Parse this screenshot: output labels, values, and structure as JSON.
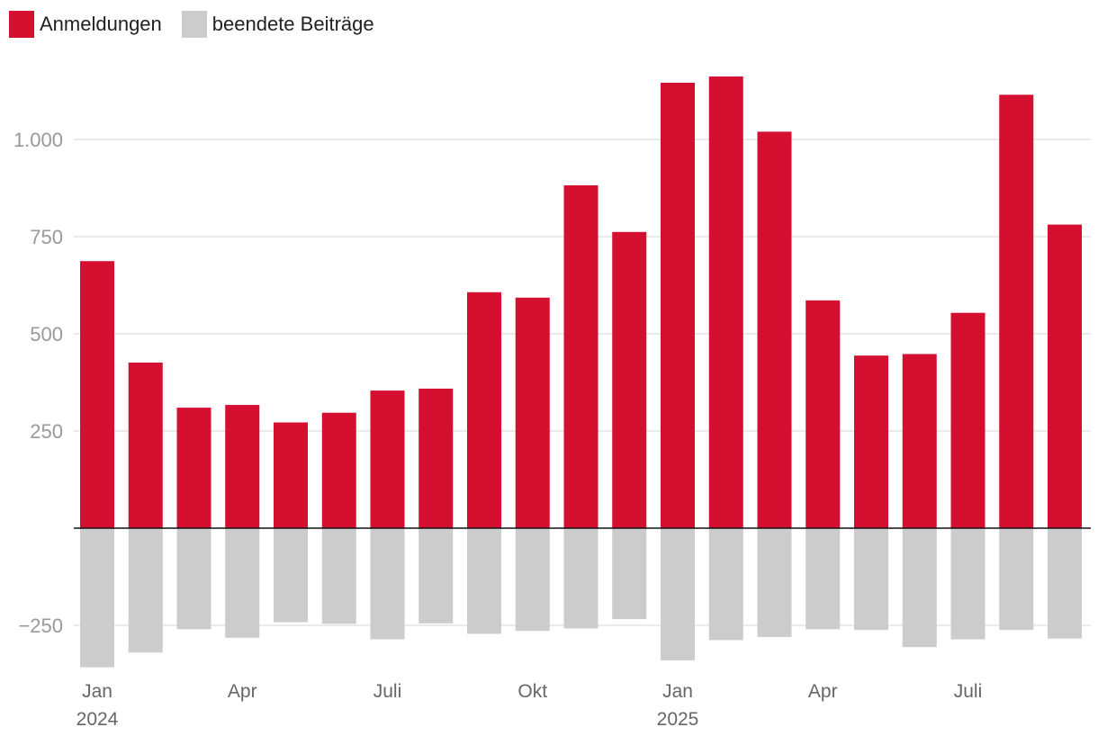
{
  "chart_data": {
    "type": "bar",
    "title": "",
    "xlabel": "",
    "ylabel": "",
    "ylim": [
      -365,
      1240
    ],
    "yticks": [
      {
        "value": -250,
        "label": "−250"
      },
      {
        "value": 250,
        "label": "250"
      },
      {
        "value": 500,
        "label": "500"
      },
      {
        "value": 750,
        "label": "750"
      },
      {
        "value": 1000,
        "label": "1.000"
      }
    ],
    "grid": true,
    "legend_position": "top-left",
    "categories": [
      "Jan 2024",
      "Feb 2024",
      "Mär 2024",
      "Apr 2024",
      "Mai 2024",
      "Juni 2024",
      "Juli 2024",
      "Aug 2024",
      "Sep 2024",
      "Okt 2024",
      "Nov 2024",
      "Dez 2024",
      "Jan 2025",
      "Feb 2025",
      "Mär 2025",
      "Apr 2025",
      "Mai 2025",
      "Juni 2025",
      "Juli 2025",
      "Aug 2025",
      "Sep 2025"
    ],
    "x_tick_labels": [
      {
        "index": 0,
        "lines": [
          "Jan",
          "2024"
        ]
      },
      {
        "index": 3,
        "lines": [
          "Apr"
        ]
      },
      {
        "index": 6,
        "lines": [
          "Juli"
        ]
      },
      {
        "index": 9,
        "lines": [
          "Okt"
        ]
      },
      {
        "index": 12,
        "lines": [
          "Jan",
          "2025"
        ]
      },
      {
        "index": 15,
        "lines": [
          "Apr"
        ]
      },
      {
        "index": 18,
        "lines": [
          "Juli"
        ]
      }
    ],
    "series": [
      {
        "name": "Anmeldungen",
        "color": "#d40f30",
        "values": [
          687,
          426,
          310,
          317,
          272,
          297,
          354,
          359,
          607,
          593,
          882,
          762,
          1146,
          1162,
          1020,
          586,
          444,
          448,
          554,
          1115,
          781
        ]
      },
      {
        "name": "beendete Beiträge",
        "color": "#cccccc",
        "values": [
          -358,
          -320,
          -260,
          -282,
          -242,
          -246,
          -286,
          -245,
          -272,
          -264,
          -258,
          -234,
          -340,
          -288,
          -280,
          -260,
          -262,
          -306,
          -286,
          -262,
          -284
        ]
      }
    ]
  }
}
